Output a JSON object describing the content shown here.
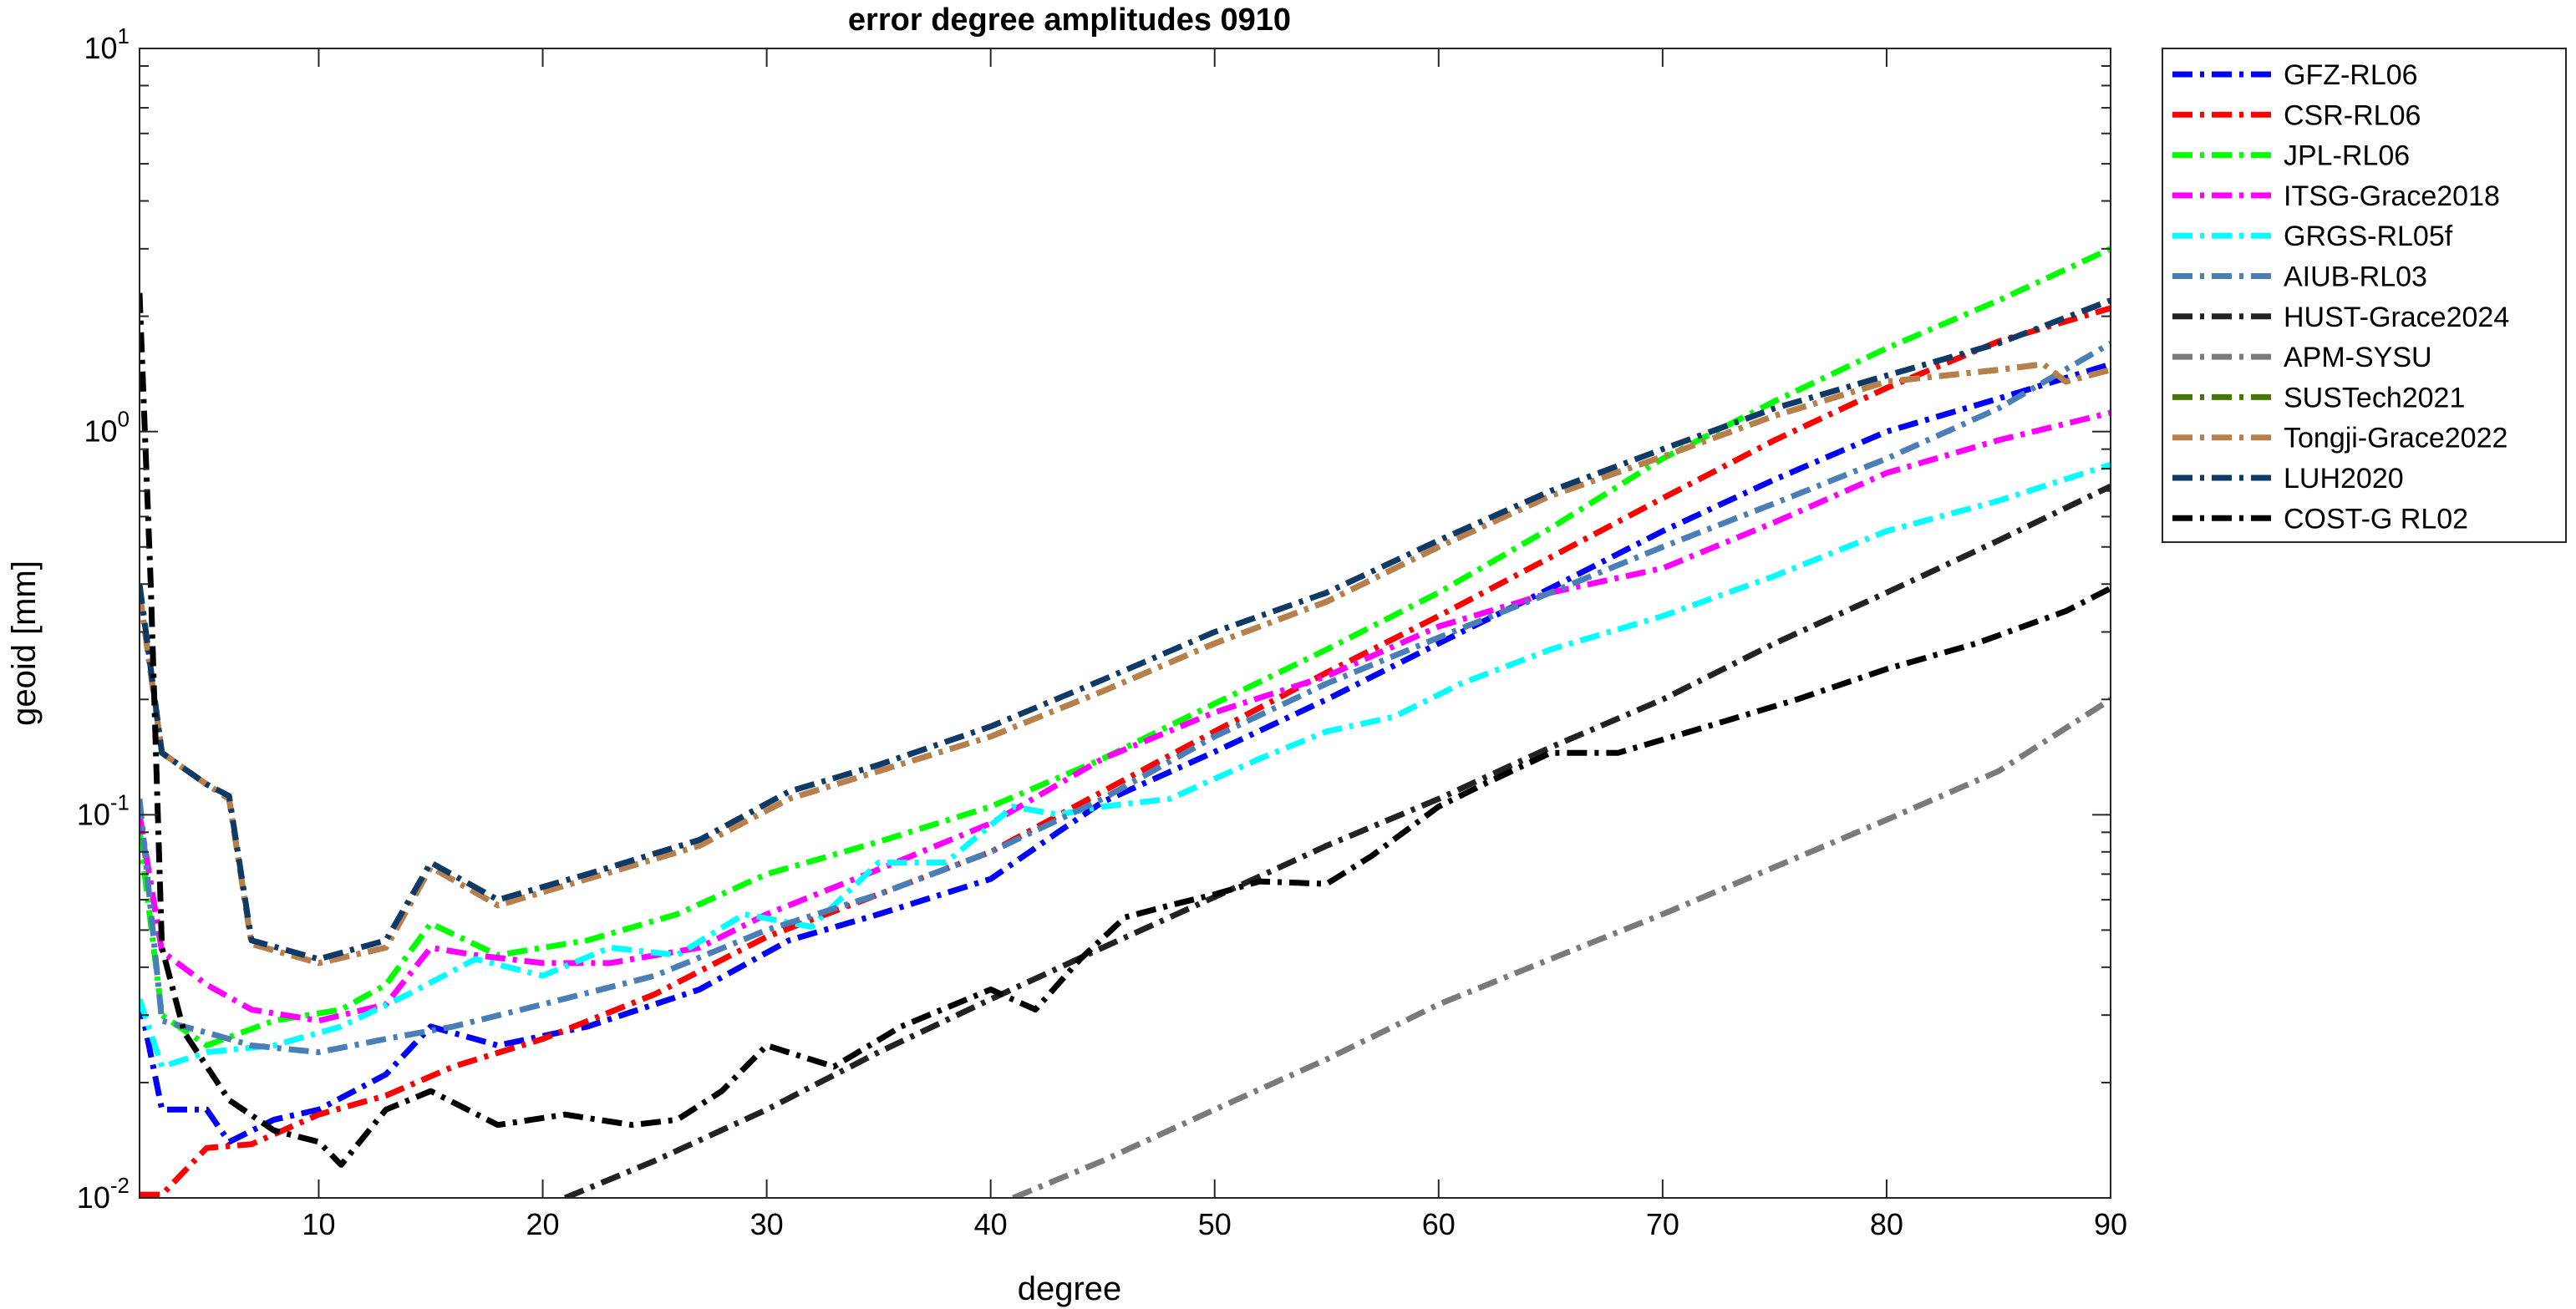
{
  "chart_data": {
    "type": "line",
    "title": "error degree amplitudes 0910",
    "xlabel": "degree",
    "ylabel": "geoid [mm]",
    "xlim": [
      2,
      90
    ],
    "ylim": [
      0.01,
      10
    ],
    "yscale": "log",
    "grid": false,
    "legend_position": "outside-right-top",
    "x_ticks": [
      10,
      20,
      30,
      40,
      50,
      60,
      70,
      80,
      90
    ],
    "y_ticks": [
      {
        "value": 0.01,
        "base": "10",
        "exp": "-2"
      },
      {
        "value": 0.1,
        "base": "10",
        "exp": "-1"
      },
      {
        "value": 1,
        "base": "10",
        "exp": "0"
      },
      {
        "value": 10,
        "base": "10",
        "exp": "1"
      }
    ],
    "series": [
      {
        "name": "GFZ-RL06",
        "color": "#0000ff",
        "points": [
          [
            2,
            0.033
          ],
          [
            3,
            0.017
          ],
          [
            5,
            0.017
          ],
          [
            6,
            0.014
          ],
          [
            8,
            0.016
          ],
          [
            10,
            0.017
          ],
          [
            13,
            0.021
          ],
          [
            15,
            0.028
          ],
          [
            18,
            0.025
          ],
          [
            22,
            0.028
          ],
          [
            27,
            0.035
          ],
          [
            31,
            0.047
          ],
          [
            35,
            0.055
          ],
          [
            40,
            0.068
          ],
          [
            43,
            0.09
          ],
          [
            45,
            0.108
          ],
          [
            50,
            0.146
          ],
          [
            55,
            0.2
          ],
          [
            60,
            0.28
          ],
          [
            65,
            0.39
          ],
          [
            70,
            0.55
          ],
          [
            75,
            0.75
          ],
          [
            80,
            1.0
          ],
          [
            85,
            1.22
          ],
          [
            90,
            1.5
          ]
        ]
      },
      {
        "name": "CSR-RL06",
        "color": "#ff0000",
        "points": [
          [
            2,
            0.0102
          ],
          [
            3,
            0.0102
          ],
          [
            5,
            0.0135
          ],
          [
            7,
            0.0138
          ],
          [
            10,
            0.0165
          ],
          [
            13,
            0.0185
          ],
          [
            16,
            0.022
          ],
          [
            20,
            0.026
          ],
          [
            25,
            0.034
          ],
          [
            30,
            0.048
          ],
          [
            35,
            0.062
          ],
          [
            40,
            0.08
          ],
          [
            45,
            0.115
          ],
          [
            50,
            0.165
          ],
          [
            55,
            0.235
          ],
          [
            60,
            0.33
          ],
          [
            65,
            0.47
          ],
          [
            70,
            0.67
          ],
          [
            75,
            0.95
          ],
          [
            80,
            1.3
          ],
          [
            85,
            1.72
          ],
          [
            90,
            2.1
          ]
        ]
      },
      {
        "name": "JPL-RL06",
        "color": "#00ff00",
        "points": [
          [
            2,
            0.09
          ],
          [
            3,
            0.03
          ],
          [
            5,
            0.025
          ],
          [
            8,
            0.029
          ],
          [
            11,
            0.031
          ],
          [
            13,
            0.036
          ],
          [
            15,
            0.052
          ],
          [
            18,
            0.043
          ],
          [
            22,
            0.047
          ],
          [
            26,
            0.055
          ],
          [
            30,
            0.07
          ],
          [
            35,
            0.085
          ],
          [
            40,
            0.105
          ],
          [
            45,
            0.14
          ],
          [
            50,
            0.195
          ],
          [
            55,
            0.27
          ],
          [
            60,
            0.38
          ],
          [
            65,
            0.56
          ],
          [
            70,
            0.85
          ],
          [
            75,
            1.2
          ],
          [
            80,
            1.65
          ],
          [
            85,
            2.2
          ],
          [
            90,
            3.0
          ]
        ]
      },
      {
        "name": "ITSG-Grace2018",
        "color": "#ff00ff",
        "points": [
          [
            2,
            0.1
          ],
          [
            3,
            0.044
          ],
          [
            5,
            0.036
          ],
          [
            7,
            0.031
          ],
          [
            10,
            0.029
          ],
          [
            13,
            0.032
          ],
          [
            15,
            0.045
          ],
          [
            17,
            0.043
          ],
          [
            20,
            0.041
          ],
          [
            23,
            0.041
          ],
          [
            27,
            0.045
          ],
          [
            30,
            0.055
          ],
          [
            35,
            0.072
          ],
          [
            40,
            0.095
          ],
          [
            45,
            0.14
          ],
          [
            50,
            0.185
          ],
          [
            55,
            0.23
          ],
          [
            60,
            0.31
          ],
          [
            65,
            0.38
          ],
          [
            70,
            0.44
          ],
          [
            75,
            0.58
          ],
          [
            80,
            0.78
          ],
          [
            85,
            0.95
          ],
          [
            90,
            1.12
          ]
        ]
      },
      {
        "name": "GRGS-RL05f",
        "color": "#00ffff",
        "points": [
          [
            2,
            0.033
          ],
          [
            3,
            0.022
          ],
          [
            5,
            0.024
          ],
          [
            8,
            0.025
          ],
          [
            11,
            0.028
          ],
          [
            14,
            0.034
          ],
          [
            17,
            0.042
          ],
          [
            20,
            0.038
          ],
          [
            23,
            0.045
          ],
          [
            26,
            0.043
          ],
          [
            29,
            0.055
          ],
          [
            32,
            0.051
          ],
          [
            35,
            0.075
          ],
          [
            38,
            0.075
          ],
          [
            41,
            0.105
          ],
          [
            43,
            0.1
          ],
          [
            45,
            0.105
          ],
          [
            48,
            0.11
          ],
          [
            52,
            0.14
          ],
          [
            55,
            0.165
          ],
          [
            58,
            0.18
          ],
          [
            61,
            0.22
          ],
          [
            65,
            0.27
          ],
          [
            70,
            0.33
          ],
          [
            75,
            0.42
          ],
          [
            80,
            0.55
          ],
          [
            85,
            0.66
          ],
          [
            90,
            0.82
          ]
        ]
      },
      {
        "name": "AIUB-RL03",
        "color": "#4a7eb6",
        "points": [
          [
            2,
            0.11
          ],
          [
            3,
            0.029
          ],
          [
            5,
            0.027
          ],
          [
            7,
            0.025
          ],
          [
            10,
            0.024
          ],
          [
            13,
            0.026
          ],
          [
            16,
            0.028
          ],
          [
            20,
            0.032
          ],
          [
            25,
            0.038
          ],
          [
            30,
            0.05
          ],
          [
            35,
            0.062
          ],
          [
            40,
            0.08
          ],
          [
            45,
            0.11
          ],
          [
            50,
            0.16
          ],
          [
            55,
            0.22
          ],
          [
            60,
            0.29
          ],
          [
            65,
            0.38
          ],
          [
            70,
            0.5
          ],
          [
            75,
            0.65
          ],
          [
            80,
            0.85
          ],
          [
            85,
            1.15
          ],
          [
            90,
            1.7
          ]
        ]
      },
      {
        "name": "HUST-Grace2024",
        "color": "#222222",
        "points": [
          [
            21,
            0.01
          ],
          [
            25,
            0.0125
          ],
          [
            30,
            0.017
          ],
          [
            35,
            0.024
          ],
          [
            40,
            0.033
          ],
          [
            45,
            0.045
          ],
          [
            50,
            0.061
          ],
          [
            55,
            0.083
          ],
          [
            60,
            0.11
          ],
          [
            65,
            0.15
          ],
          [
            70,
            0.2
          ],
          [
            75,
            0.28
          ],
          [
            80,
            0.38
          ],
          [
            85,
            0.52
          ],
          [
            90,
            0.72
          ]
        ]
      },
      {
        "name": "APM-SYSU",
        "color": "#7a7a7a",
        "points": [
          [
            41,
            0.01
          ],
          [
            45,
            0.0125
          ],
          [
            50,
            0.017
          ],
          [
            55,
            0.023
          ],
          [
            60,
            0.032
          ],
          [
            65,
            0.042
          ],
          [
            70,
            0.055
          ],
          [
            75,
            0.073
          ],
          [
            80,
            0.097
          ],
          [
            85,
            0.13
          ],
          [
            90,
            0.2
          ]
        ]
      },
      {
        "name": "SUSTech2021",
        "color": "#447700",
        "points": [
          [
            2,
            0.38
          ],
          [
            3,
            0.145
          ],
          [
            5,
            0.12
          ],
          [
            6,
            0.11
          ],
          [
            7,
            0.046
          ],
          [
            10,
            0.041
          ],
          [
            13,
            0.045
          ],
          [
            15,
            0.073
          ],
          [
            18,
            0.058
          ],
          [
            22,
            0.068
          ],
          [
            27,
            0.083
          ],
          [
            31,
            0.11
          ],
          [
            35,
            0.13
          ],
          [
            40,
            0.16
          ],
          [
            45,
            0.21
          ],
          [
            50,
            0.28
          ],
          [
            55,
            0.36
          ],
          [
            60,
            0.5
          ],
          [
            65,
            0.68
          ],
          [
            70,
            0.86
          ],
          [
            75,
            1.1
          ],
          [
            80,
            1.35
          ],
          [
            85,
            1.45
          ],
          [
            87,
            1.5
          ],
          [
            88,
            1.35
          ],
          [
            90,
            1.45
          ]
        ]
      },
      {
        "name": "Tongji-Grace2022",
        "color": "#b87f4c",
        "points": [
          [
            2,
            0.38
          ],
          [
            3,
            0.145
          ],
          [
            5,
            0.12
          ],
          [
            6,
            0.11
          ],
          [
            7,
            0.046
          ],
          [
            10,
            0.041
          ],
          [
            13,
            0.045
          ],
          [
            15,
            0.073
          ],
          [
            18,
            0.058
          ],
          [
            22,
            0.068
          ],
          [
            27,
            0.083
          ],
          [
            31,
            0.11
          ],
          [
            35,
            0.13
          ],
          [
            40,
            0.16
          ],
          [
            45,
            0.21
          ],
          [
            50,
            0.28
          ],
          [
            55,
            0.36
          ],
          [
            60,
            0.5
          ],
          [
            65,
            0.68
          ],
          [
            70,
            0.86
          ],
          [
            75,
            1.1
          ],
          [
            80,
            1.35
          ],
          [
            85,
            1.45
          ],
          [
            87,
            1.5
          ],
          [
            88,
            1.35
          ],
          [
            90,
            1.45
          ]
        ]
      },
      {
        "name": "LUH2020",
        "color": "#0d3a66",
        "points": [
          [
            2,
            0.4
          ],
          [
            3,
            0.145
          ],
          [
            5,
            0.12
          ],
          [
            6,
            0.112
          ],
          [
            7,
            0.047
          ],
          [
            10,
            0.042
          ],
          [
            13,
            0.047
          ],
          [
            15,
            0.075
          ],
          [
            18,
            0.06
          ],
          [
            22,
            0.07
          ],
          [
            27,
            0.086
          ],
          [
            31,
            0.115
          ],
          [
            35,
            0.135
          ],
          [
            40,
            0.17
          ],
          [
            45,
            0.225
          ],
          [
            50,
            0.3
          ],
          [
            55,
            0.38
          ],
          [
            60,
            0.52
          ],
          [
            65,
            0.7
          ],
          [
            70,
            0.9
          ],
          [
            75,
            1.15
          ],
          [
            80,
            1.4
          ],
          [
            85,
            1.7
          ],
          [
            90,
            2.2
          ]
        ]
      },
      {
        "name": "COST-G RL02",
        "color": "#000000",
        "points": [
          [
            2,
            2.3
          ],
          [
            2.5,
            0.4
          ],
          [
            3,
            0.045
          ],
          [
            4,
            0.027
          ],
          [
            6,
            0.018
          ],
          [
            8,
            0.015
          ],
          [
            10,
            0.014
          ],
          [
            11,
            0.0122
          ],
          [
            13,
            0.017
          ],
          [
            15,
            0.019
          ],
          [
            18,
            0.0155
          ],
          [
            21,
            0.0165
          ],
          [
            24,
            0.0155
          ],
          [
            26,
            0.016
          ],
          [
            28,
            0.019
          ],
          [
            30,
            0.025
          ],
          [
            33,
            0.022
          ],
          [
            36,
            0.028
          ],
          [
            40,
            0.035
          ],
          [
            42,
            0.031
          ],
          [
            44,
            0.042
          ],
          [
            46,
            0.054
          ],
          [
            48,
            0.058
          ],
          [
            50,
            0.062
          ],
          [
            52,
            0.067
          ],
          [
            55,
            0.066
          ],
          [
            57,
            0.078
          ],
          [
            60,
            0.105
          ],
          [
            62,
            0.12
          ],
          [
            65,
            0.145
          ],
          [
            68,
            0.145
          ],
          [
            72,
            0.17
          ],
          [
            76,
            0.2
          ],
          [
            80,
            0.24
          ],
          [
            84,
            0.28
          ],
          [
            88,
            0.34
          ],
          [
            90,
            0.39
          ]
        ]
      }
    ]
  }
}
